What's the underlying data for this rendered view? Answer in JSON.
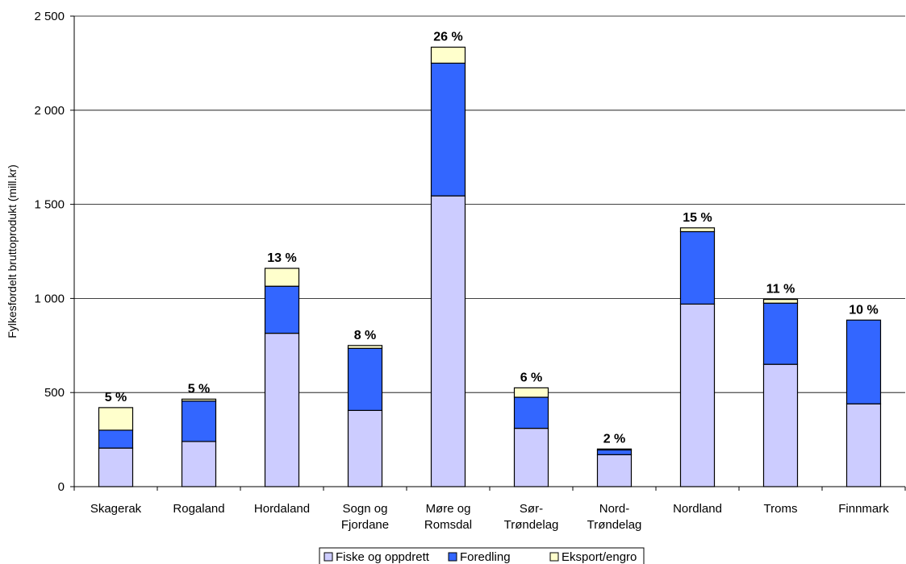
{
  "chart_data": {
    "type": "bar",
    "stacked": true,
    "title": "",
    "xlabel": "",
    "ylabel": "Fylkesfordelt bruttoprodukt  (mill.kr)",
    "ylim": [
      0,
      2500
    ],
    "yticks": [
      0,
      500,
      1000,
      1500,
      2000,
      2500
    ],
    "ytick_labels": [
      "0",
      "500",
      "1 000",
      "1 500",
      "2 000",
      "2 500"
    ],
    "grid": "horizontal",
    "legend_position": "bottom",
    "categories": [
      [
        "Skagerak"
      ],
      [
        "Rogaland"
      ],
      [
        "Hordaland"
      ],
      [
        "Sogn og",
        "Fjordane"
      ],
      [
        "Møre og",
        "Romsdal"
      ],
      [
        "Sør-",
        "Trøndelag"
      ],
      [
        "Nord-",
        "Trøndelag"
      ],
      [
        "Nordland"
      ],
      [
        "Troms"
      ],
      [
        "Finnmark"
      ]
    ],
    "series": [
      {
        "name": "Fiske og oppdrett",
        "color": "#ccccff",
        "values": [
          205,
          240,
          815,
          405,
          1545,
          310,
          170,
          970,
          650,
          440
        ]
      },
      {
        "name": "Foredling",
        "color": "#3366ff",
        "values": [
          95,
          215,
          250,
          330,
          705,
          165,
          25,
          385,
          325,
          445
        ]
      },
      {
        "name": "Eksport/engro",
        "color": "#ffffcc",
        "values": [
          120,
          10,
          95,
          15,
          85,
          50,
          5,
          20,
          20,
          0
        ]
      }
    ],
    "share_labels": [
      "5 %",
      "5 %",
      "13 %",
      "8 %",
      "26 %",
      "6 %",
      "2 %",
      "15 %",
      "11 %",
      "10 %"
    ]
  }
}
